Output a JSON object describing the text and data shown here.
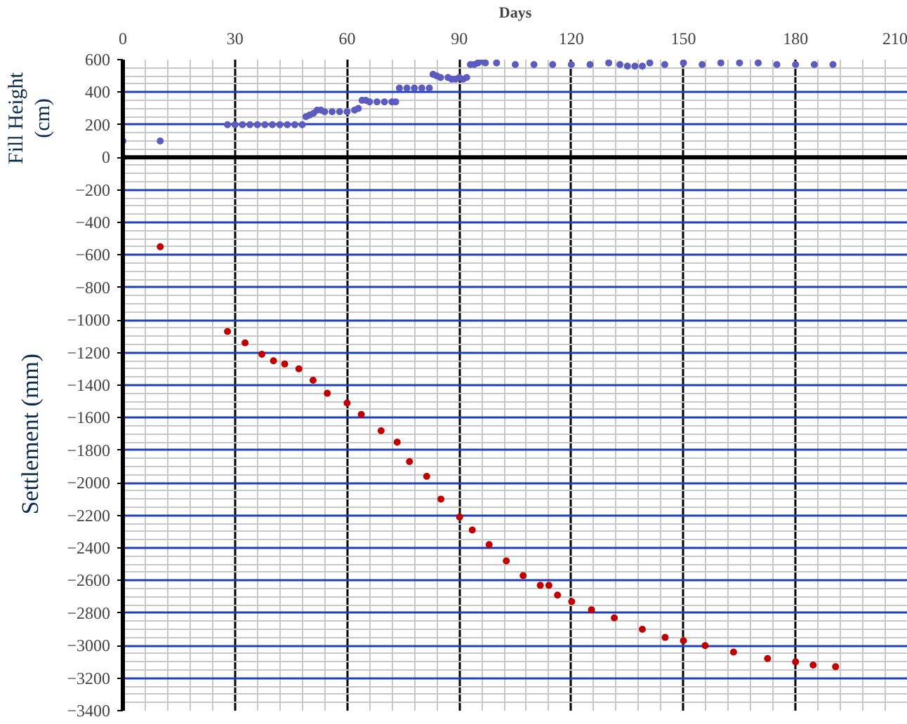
{
  "chart_data": {
    "type": "scatter",
    "xlabel": "Days",
    "ylabel": "Settlement (mm)",
    "annotations": [
      "Fill Height (cm)"
    ],
    "xlim": [
      0,
      210
    ],
    "xticks": [
      0,
      30,
      60,
      90,
      120,
      150,
      180,
      210
    ],
    "ylim": [
      -3400,
      600
    ],
    "yticks": [
      -3400,
      -3200,
      -3000,
      -2800,
      -2600,
      -2400,
      -2200,
      -2000,
      -1800,
      -1600,
      -1400,
      -1200,
      -1000,
      -800,
      -600,
      -400,
      -200,
      0,
      200,
      400,
      600
    ],
    "grid": true,
    "marker": "circle",
    "ref_lines": [
      {
        "axis": "y",
        "value": 0,
        "color": "#000000"
      }
    ],
    "series": [
      {
        "color": "#5b5bc0",
        "x": [
          0,
          10,
          28,
          30,
          32,
          34,
          36,
          38,
          40,
          42,
          44,
          46,
          48,
          49,
          50,
          51,
          52,
          53,
          54,
          56,
          58,
          60,
          62,
          63,
          64,
          65,
          66,
          68,
          70,
          72,
          73,
          74,
          76,
          78,
          80,
          82,
          83,
          84,
          85,
          87,
          88,
          89,
          90,
          91,
          92,
          93,
          94,
          95,
          96,
          97,
          100,
          105,
          110,
          115,
          120,
          125,
          130,
          133,
          135,
          137,
          139,
          141,
          145,
          150,
          155,
          160,
          165,
          170,
          175,
          180,
          185,
          190
        ],
        "values": [
          100,
          100,
          200,
          200,
          200,
          200,
          200,
          200,
          200,
          200,
          200,
          200,
          200,
          250,
          260,
          270,
          290,
          290,
          280,
          280,
          280,
          280,
          290,
          300,
          350,
          350,
          340,
          340,
          340,
          340,
          340,
          425,
          425,
          425,
          425,
          425,
          510,
          500,
          490,
          490,
          480,
          480,
          490,
          480,
          490,
          570,
          570,
          580,
          590,
          580,
          580,
          570,
          570,
          570,
          570,
          570,
          580,
          570,
          560,
          560,
          560,
          580,
          570,
          580,
          570,
          580,
          580,
          580,
          570,
          570,
          570,
          570
        ]
      },
      {
        "color": "#c00000",
        "x": [
          0,
          10,
          28,
          32.7,
          37.2,
          40.3,
          43.3,
          47.1,
          50.9,
          54.7,
          60,
          63.8,
          69.1,
          73.4,
          76.7,
          81.3,
          85.1,
          90.1,
          93.5,
          98,
          102.6,
          107.1,
          111.7,
          114,
          116.3,
          120.1,
          125.4,
          131.5,
          139,
          145.1,
          150,
          155.8,
          163.4,
          172.5,
          180,
          184.7,
          190.7
        ],
        "values": [
          0,
          -550,
          -1070,
          -1140,
          -1210,
          -1250,
          -1270,
          -1300,
          -1370,
          -1450,
          -1510,
          -1580,
          -1680,
          -1750,
          -1870,
          -1960,
          -2100,
          -2210,
          -2290,
          -2380,
          -2480,
          -2570,
          -2630,
          -2630,
          -2690,
          -2730,
          -2780,
          -2830,
          -2900,
          -2950,
          -2970,
          -3000,
          -3040,
          -3080,
          -3100,
          -3120,
          -3130
        ]
      }
    ]
  }
}
